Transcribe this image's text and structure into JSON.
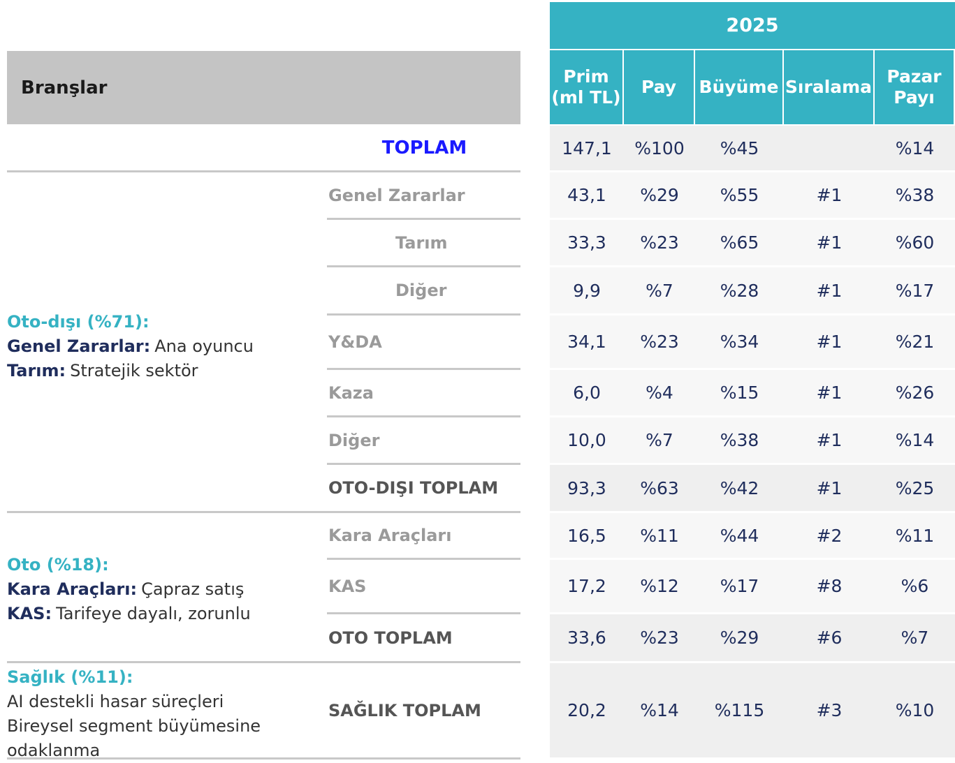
{
  "header": {
    "year": "2025",
    "branches_label": "Branşlar",
    "columns": [
      "Prim\n(ml TL)",
      "Pay",
      "Büyüme",
      "Sıralama",
      "Pazar\nPayı"
    ]
  },
  "rows": [
    {
      "label": "TOPLAM",
      "cells": [
        "147,1",
        "%100",
        "%45",
        null,
        "%14"
      ]
    },
    {
      "label": "Genel Zararlar",
      "cells": [
        "43,1",
        "%29",
        "%55",
        "#1",
        "%38"
      ]
    },
    {
      "label": "Tarım",
      "cells": [
        "33,3",
        "%23",
        "%65",
        "#1",
        "%60"
      ]
    },
    {
      "label": "Diğer",
      "cells": [
        "9,9",
        "%7",
        "%28",
        "#1",
        "%17"
      ]
    },
    {
      "label": "Y&DA",
      "cells": [
        "34,1",
        "%23",
        "%34",
        "#1",
        "%21"
      ]
    },
    {
      "label": "Kaza",
      "cells": [
        "6,0",
        "%4",
        "%15",
        "#1",
        "%26"
      ]
    },
    {
      "label": "Diğer",
      "cells": [
        "10,0",
        "%7",
        "%38",
        "#1",
        "%14"
      ]
    },
    {
      "label": "OTO-DIŞI TOPLAM",
      "cells": [
        "93,3",
        "%63",
        "%42",
        "#1",
        "%25"
      ]
    },
    {
      "label": "Kara Araçları",
      "cells": [
        "16,5",
        "%11",
        "%44",
        "#2",
        "%11"
      ]
    },
    {
      "label": "KAS",
      "cells": [
        "17,2",
        "%12",
        "%17",
        "#8",
        "%6"
      ]
    },
    {
      "label": "OTO TOPLAM",
      "cells": [
        "33,6",
        "%23",
        "%29",
        "#6",
        "%7"
      ]
    },
    {
      "label": "SAĞLIK TOPLAM",
      "cells": [
        "20,2",
        "%14",
        "%115",
        "#3",
        "%10"
      ]
    }
  ],
  "groups": [
    {
      "title": "Oto-dışı (%71):",
      "lines": [
        {
          "bold": "Genel Zararlar:",
          "text": "Ana oyuncu"
        },
        {
          "bold": "Tarım:",
          "text": "Stratejik sektör"
        }
      ]
    },
    {
      "title": "Oto (%18):",
      "lines": [
        {
          "bold": "Kara Araçları:",
          "text": "Çapraz satış"
        },
        {
          "bold": "KAS:",
          "text": "Tarifeye dayalı, zorunlu"
        }
      ]
    },
    {
      "title": "Sağlık (%11):",
      "lines": [
        {
          "text": "AI destekli hasar süreçleri"
        },
        {
          "text": "Bireysel segment büyümesine odaklanma"
        }
      ]
    }
  ]
}
